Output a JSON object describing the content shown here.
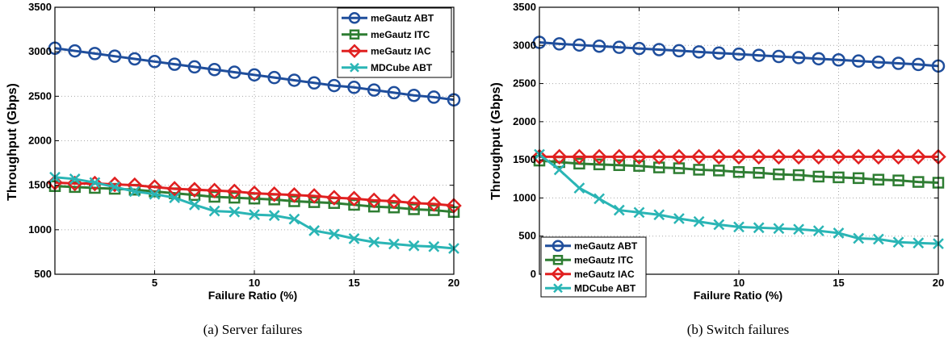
{
  "chart_data": [
    {
      "type": "line",
      "caption": "(a)  Server failures",
      "xlabel": "Failure Ratio (%)",
      "ylabel": "Throughput (Gbps)",
      "xlim": [
        0,
        20
      ],
      "ylim": [
        500,
        3500
      ],
      "xticks": [
        5,
        10,
        15,
        20
      ],
      "yticks": [
        500,
        1000,
        1500,
        2000,
        2500,
        3000,
        3500
      ],
      "grid": true,
      "legend_position": "top-right",
      "x": [
        0,
        1,
        2,
        3,
        4,
        5,
        6,
        7,
        8,
        9,
        10,
        11,
        12,
        13,
        14,
        15,
        16,
        17,
        18,
        19,
        20
      ],
      "series": [
        {
          "name": "meGautz ABT",
          "color": "#1f4e9c",
          "marker": "circle",
          "values": [
            3040,
            3010,
            2980,
            2950,
            2920,
            2890,
            2860,
            2830,
            2800,
            2770,
            2740,
            2710,
            2680,
            2650,
            2620,
            2600,
            2570,
            2540,
            2510,
            2490,
            2460
          ]
        },
        {
          "name": "meGautz ITC",
          "color": "#2e7d32",
          "marker": "square",
          "values": [
            1490,
            1480,
            1470,
            1460,
            1450,
            1430,
            1410,
            1390,
            1370,
            1360,
            1350,
            1340,
            1320,
            1310,
            1300,
            1280,
            1260,
            1250,
            1230,
            1220,
            1200
          ]
        },
        {
          "name": "meGautz IAC",
          "color": "#e02020",
          "marker": "diamond",
          "values": [
            1530,
            1520,
            1520,
            1510,
            1500,
            1480,
            1460,
            1450,
            1440,
            1430,
            1410,
            1400,
            1390,
            1380,
            1360,
            1350,
            1330,
            1320,
            1300,
            1290,
            1270
          ]
        },
        {
          "name": "MDCube ABT",
          "color": "#2ab5b5",
          "marker": "x",
          "values": [
            1590,
            1570,
            1530,
            1480,
            1430,
            1400,
            1360,
            1280,
            1210,
            1200,
            1170,
            1160,
            1120,
            990,
            950,
            900,
            860,
            840,
            820,
            810,
            790
          ]
        }
      ]
    },
    {
      "type": "line",
      "caption": "(b)  Switch failures",
      "xlabel": "Failure Ratio (%)",
      "ylabel": "Throughput (Gbps)",
      "xlim": [
        0,
        20
      ],
      "ylim": [
        0,
        3500
      ],
      "xticks": [
        5,
        10,
        15,
        20
      ],
      "yticks": [
        0,
        500,
        1000,
        1500,
        2000,
        2500,
        3000,
        3500
      ],
      "grid": true,
      "legend_position": "bottom-left",
      "x": [
        0,
        1,
        2,
        3,
        4,
        5,
        6,
        7,
        8,
        9,
        10,
        11,
        12,
        13,
        14,
        15,
        16,
        17,
        18,
        19,
        20
      ],
      "series": [
        {
          "name": "meGautz ABT",
          "color": "#1f4e9c",
          "marker": "circle",
          "values": [
            3040,
            3020,
            3005,
            2990,
            2975,
            2960,
            2945,
            2930,
            2915,
            2900,
            2885,
            2870,
            2855,
            2840,
            2825,
            2810,
            2795,
            2780,
            2765,
            2750,
            2730
          ]
        },
        {
          "name": "meGautz ITC",
          "color": "#2e7d32",
          "marker": "square",
          "values": [
            1490,
            1470,
            1450,
            1440,
            1430,
            1420,
            1400,
            1390,
            1370,
            1360,
            1340,
            1330,
            1310,
            1300,
            1280,
            1270,
            1260,
            1240,
            1230,
            1210,
            1200
          ]
        },
        {
          "name": "meGautz IAC",
          "color": "#e02020",
          "marker": "diamond",
          "values": [
            1540,
            1540,
            1540,
            1540,
            1540,
            1540,
            1540,
            1540,
            1540,
            1540,
            1540,
            1540,
            1540,
            1540,
            1540,
            1540,
            1540,
            1540,
            1540,
            1540,
            1540
          ]
        },
        {
          "name": "MDCube ABT",
          "color": "#2ab5b5",
          "marker": "x",
          "values": [
            1570,
            1370,
            1130,
            990,
            840,
            810,
            780,
            730,
            690,
            650,
            620,
            610,
            600,
            590,
            570,
            540,
            470,
            460,
            420,
            410,
            400
          ]
        }
      ]
    }
  ]
}
